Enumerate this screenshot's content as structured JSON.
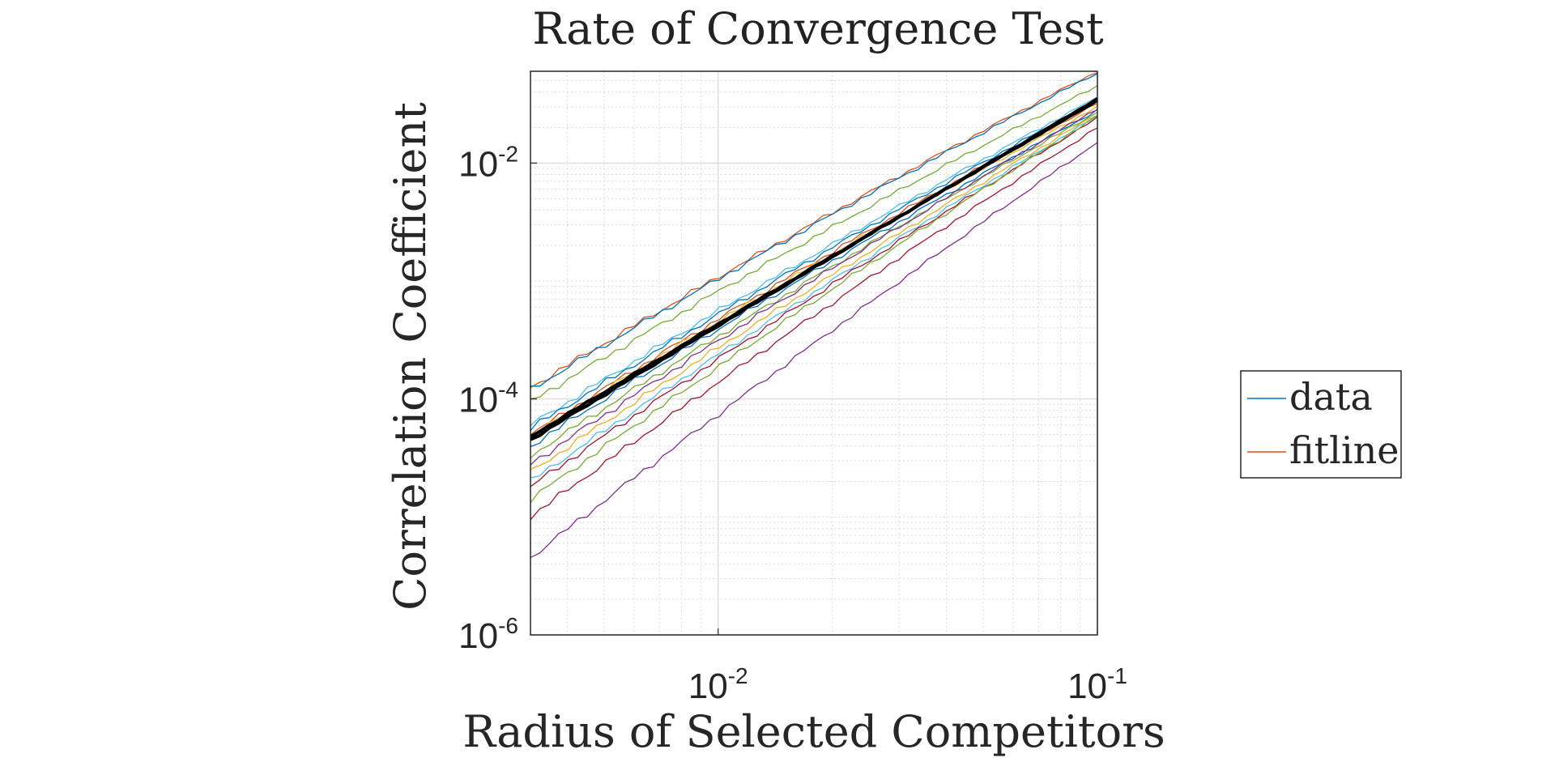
{
  "chart_data": {
    "type": "line",
    "title": "Rate of Convergence Test",
    "xlabel": "Radius of Selected Competitors",
    "ylabel": "Correlation Coefficient",
    "xscale": "log",
    "yscale": "log",
    "xlim": [
      0.0032,
      0.1
    ],
    "ylim": [
      1e-06,
      0.06
    ],
    "xticks": [
      {
        "value": 0.01,
        "base": "10",
        "exp": "-2"
      },
      {
        "value": 0.1,
        "base": "10",
        "exp": "-1"
      }
    ],
    "yticks": [
      {
        "value": 1e-06,
        "base": "10",
        "exp": "-6"
      },
      {
        "value": 0.0001,
        "base": "10",
        "exp": "-4"
      },
      {
        "value": 0.01,
        "base": "10",
        "exp": "-2"
      }
    ],
    "grid": true,
    "legend": {
      "placement": "right",
      "entries": [
        {
          "label": "data",
          "color": "#0072BD"
        },
        {
          "label": "fitline",
          "color": "#D95319"
        }
      ]
    },
    "series": [
      {
        "color": "#D95319",
        "start": 0.000125,
        "end": 0.06
      },
      {
        "color": "#0072BD",
        "start": 0.00012,
        "end": 0.058
      },
      {
        "color": "#77AC30",
        "start": 9.5e-05,
        "end": 0.045
      },
      {
        "color": "#4DBEEE",
        "start": 6e-05,
        "end": 0.036
      },
      {
        "color": "#0072BD",
        "start": 5.6e-05,
        "end": 0.034
      },
      {
        "color": "#D95319",
        "start": 5e-05,
        "end": 0.032
      },
      {
        "color": "#EDB120",
        "start": 4.8e-05,
        "end": 0.03
      },
      {
        "color": "#0072BD",
        "start": 4e-05,
        "end": 0.028
      },
      {
        "color": "#77AC30",
        "start": 3.3e-05,
        "end": 0.027
      },
      {
        "color": "#7E2F8E",
        "start": 2.8e-05,
        "end": 0.029
      },
      {
        "color": "#EDB120",
        "start": 2.4e-05,
        "end": 0.026
      },
      {
        "color": "#4DBEEE",
        "start": 2e-05,
        "end": 0.025
      },
      {
        "color": "#A2142F",
        "start": 1.8e-05,
        "end": 0.024
      },
      {
        "color": "#77AC30",
        "start": 1.4e-05,
        "end": 0.025
      },
      {
        "color": "#A2142F",
        "start": 1e-05,
        "end": 0.02
      },
      {
        "color": "#7E2F8E",
        "start": 4.5e-06,
        "end": 0.015
      }
    ],
    "fit_lines": [
      {
        "color": "#000000",
        "start": 4.5e-05,
        "end": 0.035
      },
      {
        "color": "#000000",
        "start": 4.8e-05,
        "end": 0.034
      }
    ]
  }
}
